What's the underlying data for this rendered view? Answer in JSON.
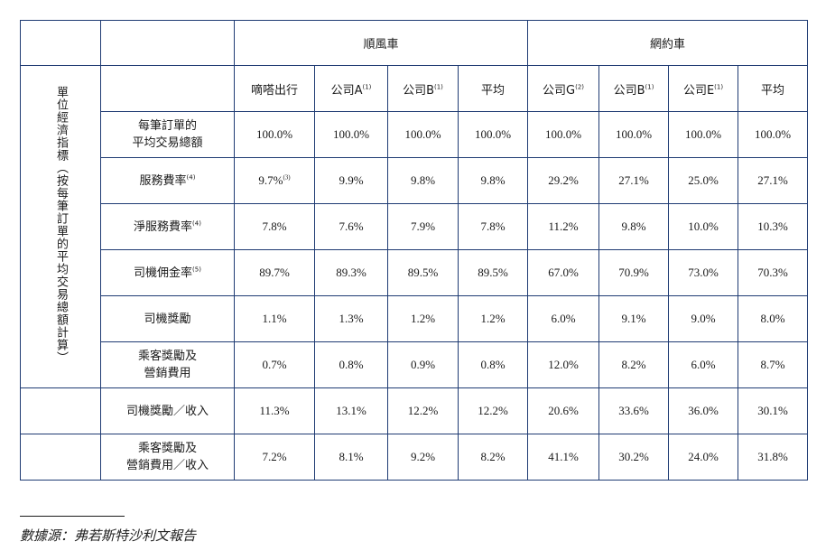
{
  "table": {
    "groups": [
      "順風車",
      "網約車"
    ],
    "side_label": "單位經濟指標（按每筆訂單的平均交易總額計算）",
    "columns": [
      {
        "name": "嘀嗒出行",
        "note": ""
      },
      {
        "name": "公司A",
        "note": "(1)"
      },
      {
        "name": "公司B",
        "note": "(1)"
      },
      {
        "name": "平均",
        "note": ""
      },
      {
        "name": "公司G",
        "note": "(2)"
      },
      {
        "name": "公司B",
        "note": "(1)"
      },
      {
        "name": "公司E",
        "note": "(1)"
      },
      {
        "name": "平均",
        "note": ""
      }
    ],
    "rows": [
      {
        "label": "每筆訂單的\n平均交易總額",
        "note": "",
        "values": [
          "100.0%",
          "100.0%",
          "100.0%",
          "100.0%",
          "100.0%",
          "100.0%",
          "100.0%",
          "100.0%"
        ]
      },
      {
        "label": "服務費率",
        "note": "(4)",
        "values": [
          "9.7%",
          "9.9%",
          "9.8%",
          "9.8%",
          "29.2%",
          "27.1%",
          "25.0%",
          "27.1%"
        ],
        "first_value_note": "(3)"
      },
      {
        "label": "淨服務費率",
        "note": "(4)",
        "values": [
          "7.8%",
          "7.6%",
          "7.9%",
          "7.8%",
          "11.2%",
          "9.8%",
          "10.0%",
          "10.3%"
        ]
      },
      {
        "label": "司機佣金率",
        "note": "(5)",
        "values": [
          "89.7%",
          "89.3%",
          "89.5%",
          "89.5%",
          "67.0%",
          "70.9%",
          "73.0%",
          "70.3%"
        ]
      },
      {
        "label": "司機獎勵",
        "note": "",
        "values": [
          "1.1%",
          "1.3%",
          "1.2%",
          "1.2%",
          "6.0%",
          "9.1%",
          "9.0%",
          "8.0%"
        ]
      },
      {
        "label": "乘客獎勵及\n營銷費用",
        "note": "",
        "values": [
          "0.7%",
          "0.8%",
          "0.9%",
          "0.8%",
          "12.0%",
          "8.2%",
          "6.0%",
          "8.7%"
        ]
      },
      {
        "label": "司機獎勵／收入",
        "note": "",
        "values": [
          "11.3%",
          "13.1%",
          "12.2%",
          "12.2%",
          "20.6%",
          "33.6%",
          "36.0%",
          "30.1%"
        ]
      },
      {
        "label": "乘客獎勵及\n營銷費用／收入",
        "note": "",
        "values": [
          "7.2%",
          "8.1%",
          "9.2%",
          "8.2%",
          "41.1%",
          "30.2%",
          "24.0%",
          "31.8%"
        ]
      }
    ]
  },
  "footer": {
    "source": "數據源：弗若斯特沙利文報告"
  }
}
